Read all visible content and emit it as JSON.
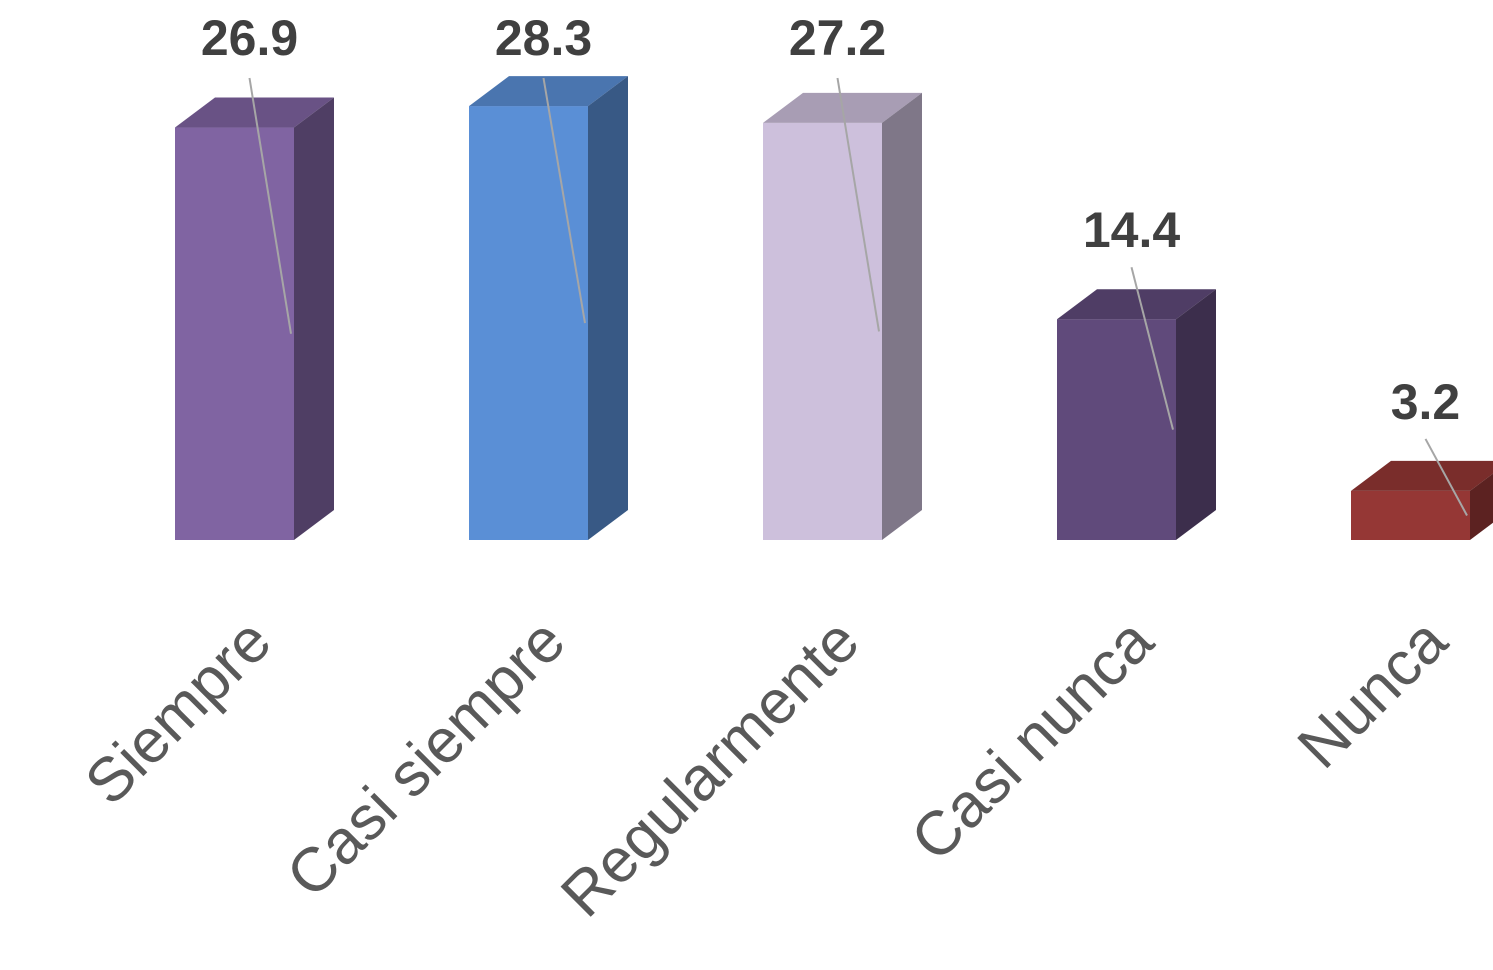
{
  "chart_data": {
    "type": "bar",
    "style": "3d-column",
    "categories": [
      "Siempre",
      "Casi siempre",
      "Regularmente",
      "Casi nunca",
      "Nunca"
    ],
    "values": [
      26.9,
      28.3,
      27.2,
      14.4,
      3.2
    ],
    "value_labels": [
      "26.9",
      "28.3",
      "27.2",
      "14.4",
      "3.2"
    ],
    "colors": [
      "#8064a2",
      "#5a8fd6",
      "#cdc0dc",
      "#604a7b",
      "#953735"
    ],
    "title": "",
    "xlabel": "",
    "ylabel": "",
    "ylim": [
      0,
      30
    ],
    "grid": false,
    "legend": "none"
  }
}
